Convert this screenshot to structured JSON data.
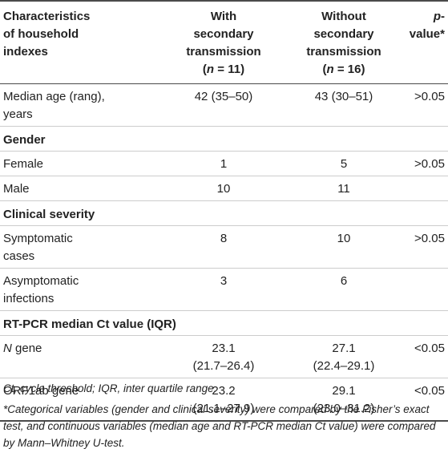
{
  "header": {
    "col1": [
      "Characteristics",
      "of household",
      "indexes"
    ],
    "col2": [
      "With",
      "secondary",
      "transmission"
    ],
    "col2_n": "11",
    "col3": [
      "Without",
      "secondary",
      "transmission"
    ],
    "col3_n": "16",
    "col4_italic": "p",
    "col4_rest": "-value*",
    "n_italic": "n",
    "n_eq": " = "
  },
  "rows": {
    "age": {
      "label1": "Median age (rang),",
      "label2": "years",
      "with": "42 (35–50)",
      "without": "43 (30–51)",
      "p": ">0.05"
    },
    "gender": {
      "label": "Gender"
    },
    "female": {
      "label": "Female",
      "with": "1",
      "without": "5",
      "p": ">0.05"
    },
    "male": {
      "label": "Male",
      "with": "10",
      "without": "11",
      "p": ""
    },
    "severity": {
      "label": "Clinical severity"
    },
    "symptomatic": {
      "label1": "Symptomatic",
      "label2": "cases",
      "with": "8",
      "without": "10",
      "p": ">0.05"
    },
    "asymptomatic": {
      "label1": "Asymptomatic",
      "label2": "infections",
      "with": "3",
      "without": "6",
      "p": ""
    },
    "rtpcr": {
      "label": "RT-PCR median Ct value (IQR)"
    },
    "ngene": {
      "label_italic": "N",
      "label_rest": " gene",
      "with1": "23.1",
      "with2": "(21.7–26.4)",
      "without1": "27.1",
      "without2": "(22.4–29.1)",
      "p": "<0.05"
    },
    "orf": {
      "label": "ORF1ab gene",
      "with1": "23.2",
      "with2": "(21.1–27.9)",
      "without1": "29.1",
      "without2": "(23.0–31.2)",
      "p": "<0.05"
    }
  },
  "notes": {
    "abbrev": "Ct, cycle threshold; IQR, inter quartile range.",
    "footnote": "*Categorical variables (gender and clinical severity) were compared by the Fisher’s exact test, and continuous variables (median age and RT-PCR median Ct value) were compared by Mann–Whitney U-test."
  }
}
